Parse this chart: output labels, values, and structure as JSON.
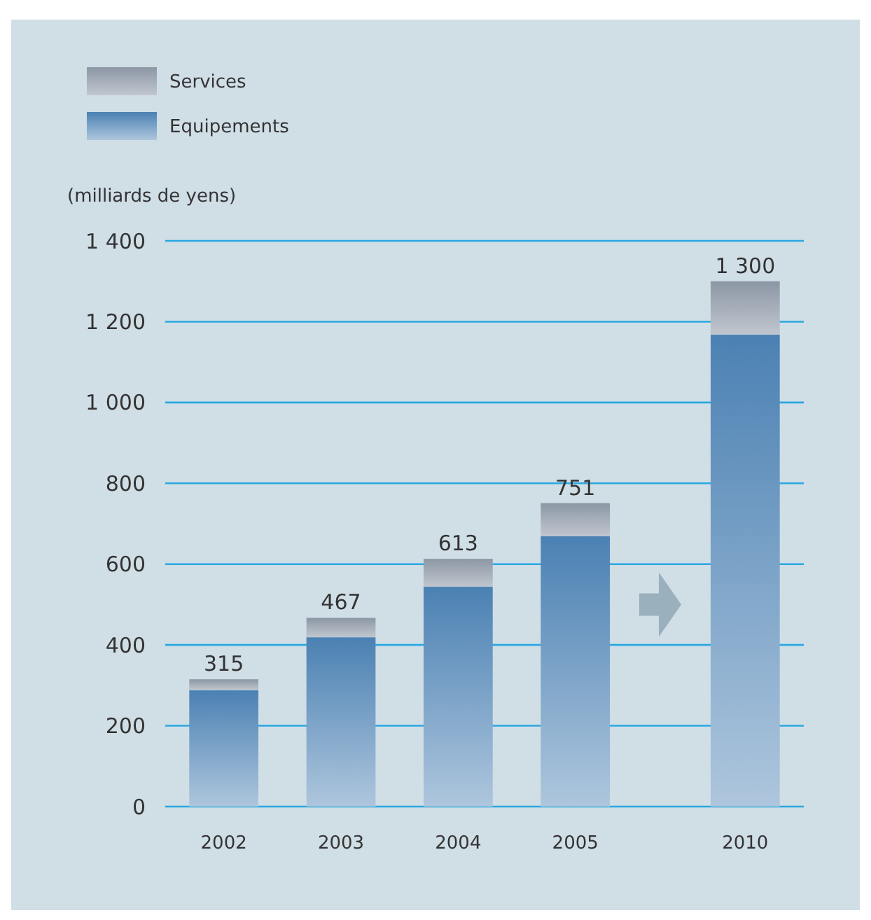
{
  "chart_data": {
    "type": "bar",
    "stacked": true,
    "ylabel": "(milliards de yens)",
    "categories": [
      "2002",
      "2003",
      "2004",
      "2005",
      "2010"
    ],
    "series": [
      {
        "name": "Equipements",
        "color": "#4b81b3",
        "values": [
          288,
          419,
          544,
          669,
          1168
        ]
      },
      {
        "name": "Services",
        "color": "#8c97a5",
        "values": [
          27,
          48,
          69,
          82,
          132
        ]
      }
    ],
    "totals": [
      "315",
      "467",
      "613",
      "751",
      "1 300"
    ],
    "ylim": [
      0,
      1400
    ],
    "yticks": [
      0,
      {
        "value": 200,
        "label": "200"
      },
      {
        "value": 400,
        "label": "400"
      },
      {
        "value": 600,
        "label": "600"
      },
      {
        "value": 800,
        "label": "800"
      },
      {
        "value": 1000,
        "label": "1 000"
      },
      {
        "value": 1200,
        "label": "1 200"
      },
      {
        "value": 1400,
        "label": "1 400"
      }
    ],
    "grid": "y",
    "legend": "top left"
  }
}
